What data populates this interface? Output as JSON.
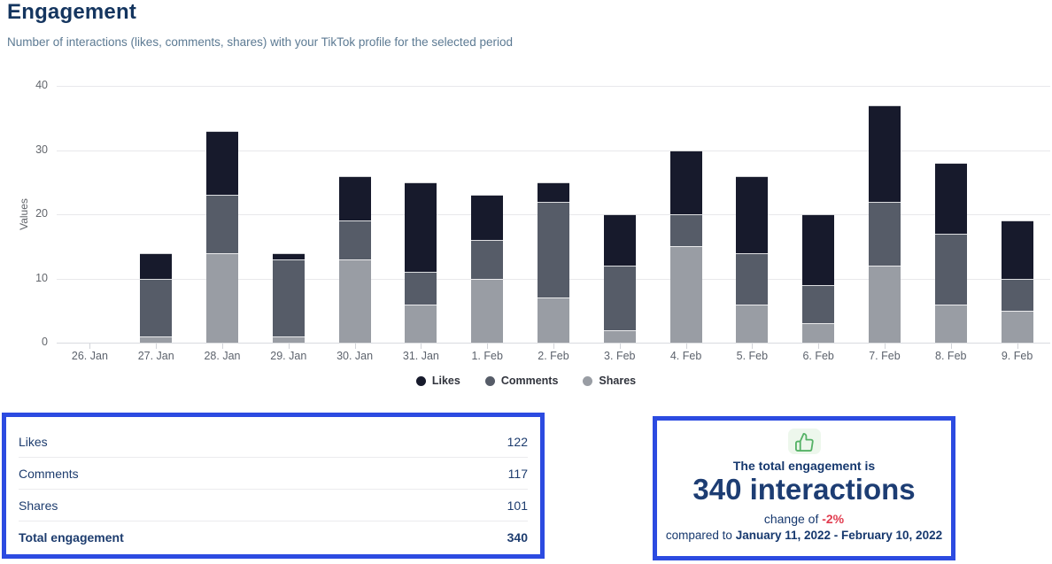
{
  "page": {
    "title": "Engagement",
    "subtitle": "Number of interactions (likes, comments, shares) with your TikTok profile for the selected period"
  },
  "chart_data": {
    "type": "bar",
    "stacked": true,
    "title": "",
    "xlabel": "",
    "ylabel": "Values",
    "ylim": [
      0,
      40
    ],
    "yticks": [
      0,
      10,
      20,
      30,
      40
    ],
    "grid": true,
    "legend_position": "bottom",
    "categories": [
      "26. Jan",
      "27. Jan",
      "28. Jan",
      "29. Jan",
      "30. Jan",
      "31. Jan",
      "1. Feb",
      "2. Feb",
      "3. Feb",
      "4. Feb",
      "5. Feb",
      "6. Feb",
      "7. Feb",
      "8. Feb",
      "9. Feb"
    ],
    "series": [
      {
        "name": "Likes",
        "color": "#171a2c",
        "values": [
          0,
          4,
          10,
          1,
          7,
          14,
          7,
          3,
          8,
          10,
          12,
          11,
          15,
          11,
          9
        ]
      },
      {
        "name": "Comments",
        "color": "#565c68",
        "values": [
          0,
          9,
          9,
          12,
          6,
          5,
          6,
          15,
          10,
          5,
          8,
          6,
          10,
          11,
          5
        ]
      },
      {
        "name": "Shares",
        "color": "#999da4",
        "values": [
          0,
          1,
          14,
          1,
          13,
          6,
          10,
          7,
          2,
          15,
          6,
          3,
          12,
          6,
          5
        ]
      }
    ],
    "stack_order_bottom_to_top": [
      "Shares",
      "Comments",
      "Likes"
    ],
    "totals_per_day": [
      0,
      14,
      33,
      14,
      26,
      25,
      23,
      25,
      20,
      30,
      26,
      20,
      37,
      28,
      19
    ]
  },
  "summary_table": {
    "rows": [
      {
        "label": "Likes",
        "value": "122"
      },
      {
        "label": "Comments",
        "value": "117"
      },
      {
        "label": "Shares",
        "value": "101"
      },
      {
        "label": "Total engagement",
        "value": "340"
      }
    ]
  },
  "summary_card": {
    "icon": "thumbs-up-icon",
    "line1": "The total engagement is",
    "headline": "340 interactions",
    "change_prefix": "change of ",
    "change_value": "-2%",
    "compare_prefix": "compared to ",
    "compare_range": "January 11, 2022 - February 10, 2022"
  },
  "colors": {
    "navy": "#14355f",
    "subtitle_gray": "#5c7a93",
    "highlight_border": "#2c4be1",
    "negative_red": "#e13b4e",
    "icon_green": "#55b266",
    "icon_green_bg": "#edf7ec",
    "gridline": "#e8e8eb",
    "axis_text": "#63666c"
  }
}
